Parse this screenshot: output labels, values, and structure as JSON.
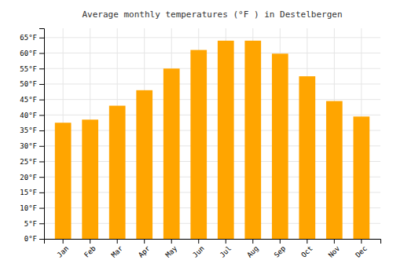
{
  "chart_data": {
    "type": "bar",
    "title": "Average monthly temperatures (°F ) in Destelbergen",
    "categories": [
      "Jan",
      "Feb",
      "Mar",
      "Apr",
      "May",
      "Jun",
      "Jul",
      "Aug",
      "Sep",
      "Oct",
      "Nov",
      "Dec"
    ],
    "values": [
      37.5,
      38.5,
      43.0,
      48.0,
      55.0,
      61.0,
      64.0,
      64.0,
      59.8,
      52.5,
      44.5,
      39.5
    ],
    "color": "#FFA500",
    "ylim": [
      0,
      68
    ],
    "yticks": [
      {
        "value": 0,
        "label": "0°F"
      },
      {
        "value": 5,
        "label": "5°F"
      },
      {
        "value": 10,
        "label": "10°F"
      },
      {
        "value": 15,
        "label": "15°F"
      },
      {
        "value": 20,
        "label": "20°F"
      },
      {
        "value": 25,
        "label": "25°F"
      },
      {
        "value": 30,
        "label": "30°F"
      },
      {
        "value": 35,
        "label": "35°F"
      },
      {
        "value": 40,
        "label": "40°F"
      },
      {
        "value": 45,
        "label": "45°F"
      },
      {
        "value": 50,
        "label": "50°F"
      },
      {
        "value": 55,
        "label": "55°F"
      },
      {
        "value": 60,
        "label": "60°F"
      },
      {
        "value": 65,
        "label": "65°F"
      }
    ],
    "grid": true
  }
}
